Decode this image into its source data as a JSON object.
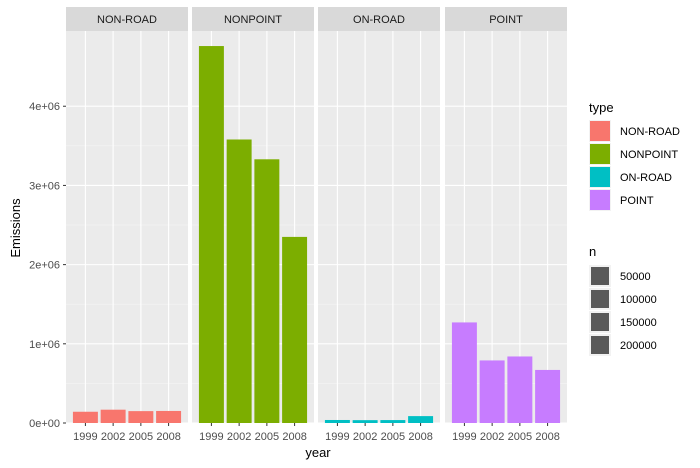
{
  "chart_data": {
    "type": "bar",
    "facet_by": "type",
    "xlabel": "year",
    "ylabel": "Emissions",
    "categories": [
      "1999",
      "2002",
      "2005",
      "2008"
    ],
    "ylim": [
      0,
      4950000
    ],
    "y_ticks": [
      0,
      1000000,
      2000000,
      3000000,
      4000000
    ],
    "y_tick_labels": [
      "0e+00",
      "1e+06",
      "2e+06",
      "3e+06",
      "4e+06"
    ],
    "series": [
      {
        "name": "NON-ROAD",
        "color": "#F8766D",
        "values": [
          142000,
          168000,
          150000,
          152000
        ]
      },
      {
        "name": "NONPOINT",
        "color": "#7CAE00",
        "values": [
          4760000,
          3580000,
          3330000,
          2350000
        ]
      },
      {
        "name": "ON-ROAD",
        "color": "#00BFC4",
        "values": [
          38000,
          36000,
          37000,
          87000
        ]
      },
      {
        "name": "POINT",
        "color": "#C77CFF",
        "values": [
          1270000,
          790000,
          840000,
          670000
        ]
      }
    ],
    "legend_type": {
      "title": "type",
      "items": [
        "NON-ROAD",
        "NONPOINT",
        "ON-ROAD",
        "POINT"
      ],
      "colors": [
        "#F8766D",
        "#7CAE00",
        "#00BFC4",
        "#C77CFF"
      ]
    },
    "legend_n": {
      "title": "n",
      "items": [
        "50000",
        "100000",
        "150000",
        "200000"
      ],
      "color": "#595959"
    },
    "legend_position": "right",
    "grid": true,
    "panel_background": "#EBEBEB",
    "strip_background": "#D9D9D9"
  }
}
